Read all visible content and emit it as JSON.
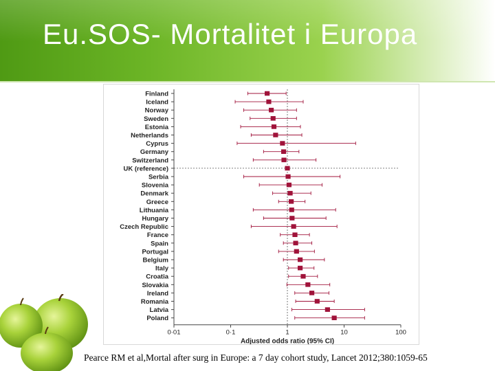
{
  "slide": {
    "title": "Eu.SOS- Mortalitet i Europa",
    "caption": "Pearce RM et al,Mortal after surg in Europe: a 7 day cohort study, Lancet 2012;380:1059-65"
  },
  "colors": {
    "marker": "#a0133a",
    "title_green": "#5aa51c",
    "axis": "#444444"
  },
  "chart_data": {
    "type": "scatter",
    "title": "",
    "xlabel": "Adjusted odds ratio (95% CI)",
    "ylabel": "",
    "x_scale": "log",
    "xlim": [
      0.01,
      100
    ],
    "xticks": [
      0.01,
      0.1,
      1,
      10,
      100
    ],
    "xtick_labels": [
      "0·01",
      "0·1",
      "1",
      "10",
      "100"
    ],
    "reference_line": 1,
    "grid": false,
    "legend": "none",
    "countries": [
      "Finland",
      "Iceland",
      "Norway",
      "Sweden",
      "Estonia",
      "Netherlands",
      "Cyprus",
      "Germany",
      "Switzerland",
      "UK (reference)",
      "Serbia",
      "Slovenia",
      "Denmark",
      "Greece",
      "Lithuania",
      "Hungary",
      "Czech Republic",
      "France",
      "Spain",
      "Portugal",
      "Belgium",
      "Italy",
      "Croatia",
      "Slovakia",
      "Ireland",
      "Romania",
      "Latvia",
      "Poland"
    ],
    "odds_ratio": [
      0.44,
      0.47,
      0.52,
      0.56,
      0.58,
      0.62,
      0.82,
      0.86,
      0.87,
      1.0,
      1.03,
      1.07,
      1.12,
      1.17,
      1.19,
      1.21,
      1.29,
      1.36,
      1.4,
      1.45,
      1.68,
      1.68,
      1.9,
      2.3,
      2.7,
      3.35,
      5.1,
      6.7
    ],
    "ci_lower": [
      0.2,
      0.12,
      0.17,
      0.22,
      0.15,
      0.23,
      0.13,
      0.38,
      0.25,
      1.0,
      0.17,
      0.32,
      0.55,
      0.7,
      0.25,
      0.38,
      0.23,
      0.75,
      0.85,
      0.7,
      0.85,
      1.05,
      1.05,
      0.98,
      1.35,
      1.4,
      1.2,
      1.35
    ],
    "ci_upper": [
      0.95,
      1.9,
      1.45,
      1.45,
      1.7,
      1.8,
      16.0,
      1.6,
      3.2,
      1.0,
      8.5,
      4.1,
      2.6,
      2.05,
      7.1,
      4.8,
      7.5,
      2.45,
      2.7,
      3.0,
      4.5,
      2.95,
      3.4,
      5.6,
      5.4,
      6.7,
      23.0,
      23.0
    ]
  }
}
